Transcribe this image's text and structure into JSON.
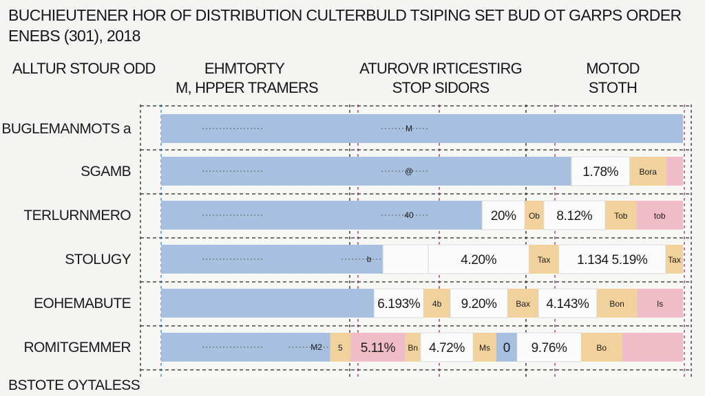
{
  "title": "BUCHIEUTENER HOR OF DISTRIBUTION CULTERBULD TSIPING SET BUD OT GARPS ORDER",
  "subtitle": "ENEBS (301), 2018",
  "footer": "BSTOTE OYTALESS",
  "column_headers": {
    "c0": "ALLTUR STOUR ODD",
    "c1_line1": "EHMTORTY",
    "c1_line2": "M, HPPER TRAMERS",
    "c2_line1": "ATUROVR IRTICESTIRG",
    "c2_line2": "STOP SIDORS",
    "c3_line1": "MOTOD",
    "c3_line2": "STOTH"
  },
  "colors": {
    "blue": "#a7c0df",
    "orange": "#f2d29c",
    "pink": "#efbcc7",
    "white": "#fbfbfb",
    "guide_blue": "#3a8fc9",
    "guide_pink": "#b03a6a",
    "guide_dark": "#333333"
  },
  "chart_data": {
    "type": "bar",
    "orientation": "horizontal",
    "stacked": true,
    "title": "BUCHIEUTENER HOR OF DISTRIBUTION CULTERBULD TSIPING SET BUD OT GARPS ORDER",
    "subtitle": "ENEBS (301), 2018",
    "categories": [
      "BUGLEMANMOTS a",
      "SGAMB",
      "TERLURNMERO",
      "STOLUGY",
      "EOHEMABUTE",
      "ROMITGEMMER"
    ],
    "xlim": [
      0,
      100
    ],
    "rows": [
      {
        "category": "BUGLEMANMOTS a",
        "segments": [
          {
            "value": 100,
            "color": "blue",
            "label": "",
            "mark": "M"
          }
        ]
      },
      {
        "category": "SGAMB",
        "segments": [
          {
            "value": 78.6,
            "color": "blue",
            "label": "",
            "mark": "@"
          },
          {
            "value": 11.2,
            "color": "white",
            "label": "1.78%"
          },
          {
            "value": 7.0,
            "color": "orange",
            "label": "Bora"
          },
          {
            "value": 3.2,
            "color": "pink",
            "label": ""
          }
        ]
      },
      {
        "category": "TERLURNMERO",
        "segments": [
          {
            "value": 61.5,
            "color": "blue",
            "label": "",
            "mark": "40"
          },
          {
            "value": 8.2,
            "color": "white",
            "label": "20%"
          },
          {
            "value": 3.6,
            "color": "orange",
            "label": "Ob"
          },
          {
            "value": 11.8,
            "color": "white",
            "label": "8.12%"
          },
          {
            "value": 6.0,
            "color": "orange",
            "label": "Tob"
          },
          {
            "value": 8.9,
            "color": "pink",
            "label": "tob"
          }
        ]
      },
      {
        "category": "STOLUGY",
        "segments": [
          {
            "value": 42.5,
            "color": "blue",
            "label": "",
            "mark": "b"
          },
          {
            "value": 8.7,
            "color": "white",
            "label": ""
          },
          {
            "value": 19.3,
            "color": "white",
            "label": "4.20%"
          },
          {
            "value": 5.7,
            "color": "orange",
            "label": "Tax"
          },
          {
            "value": 20.5,
            "color": "white",
            "label": "1.134 5.19%"
          },
          {
            "value": 3.3,
            "color": "orange",
            "label": "Tax"
          }
        ]
      },
      {
        "category": "EOHEMABUTE",
        "segments": [
          {
            "value": 40.8,
            "color": "blue",
            "label": ""
          },
          {
            "value": 9.5,
            "color": "white",
            "label": "6.193%"
          },
          {
            "value": 5.1,
            "color": "orange",
            "label": "4b"
          },
          {
            "value": 11.0,
            "color": "white",
            "label": "9.20%"
          },
          {
            "value": 5.9,
            "color": "orange",
            "label": "Bax"
          },
          {
            "value": 11.2,
            "color": "white",
            "label": "4.143%"
          },
          {
            "value": 7.7,
            "color": "orange",
            "label": "Bon"
          },
          {
            "value": 8.8,
            "color": "pink",
            "label": "Is"
          }
        ]
      },
      {
        "category": "ROMITGEMMER",
        "segments": [
          {
            "value": 32.4,
            "color": "blue",
            "label": "",
            "mark": "M2"
          },
          {
            "value": 3.9,
            "color": "orange",
            "label": "5"
          },
          {
            "value": 10.5,
            "color": "pink",
            "label": "5.11%"
          },
          {
            "value": 2.9,
            "color": "orange",
            "label": "Bn"
          },
          {
            "value": 10.1,
            "color": "white",
            "label": "4.72%"
          },
          {
            "value": 4.4,
            "color": "orange",
            "label": "Ms"
          },
          {
            "value": 4.0,
            "color": "blue",
            "label": "0"
          },
          {
            "value": 12.3,
            "color": "white",
            "label": "9.76%"
          },
          {
            "value": 7.8,
            "color": "orange",
            "label": "Bo"
          },
          {
            "value": 11.7,
            "color": "pink",
            "label": ""
          }
        ]
      }
    ]
  }
}
